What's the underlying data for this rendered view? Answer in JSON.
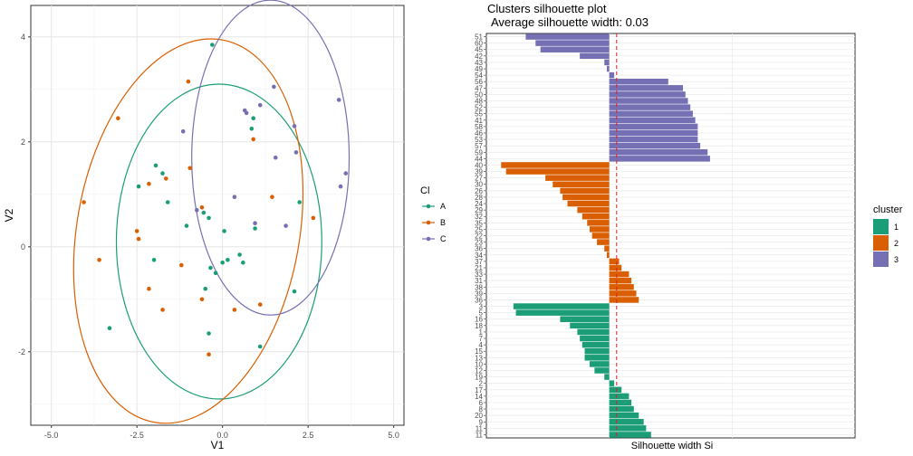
{
  "chart_data": [
    {
      "type": "scatter",
      "xlabel": "V1",
      "ylabel": "V2",
      "xlim": [
        -5.6,
        5.3
      ],
      "ylim": [
        -3.4,
        4.6
      ],
      "xticks": [
        -5.0,
        -2.5,
        0.0,
        2.5,
        5.0
      ],
      "xtick_labels": [
        "-5.0",
        "-2.5",
        "0.0",
        "2.5",
        "5.0"
      ],
      "yticks": [
        -2,
        0,
        2,
        4
      ],
      "ytick_labels": [
        "-2",
        "0",
        "2",
        "4"
      ],
      "grid": true,
      "legend": {
        "title": "Cl",
        "position": "right",
        "entries": [
          "A",
          "B",
          "C"
        ]
      },
      "colors": {
        "A": "#1b9e77",
        "B": "#d95f02",
        "C": "#7570b3"
      },
      "series": [
        {
          "name": "A",
          "points": [
            [
              -0.3,
              3.85
            ],
            [
              0.9,
              2.45
            ],
            [
              0.85,
              2.25
            ],
            [
              -1.95,
              1.55
            ],
            [
              -1.75,
              1.4
            ],
            [
              -2.45,
              1.15
            ],
            [
              -1.6,
              0.85
            ],
            [
              -0.55,
              0.65
            ],
            [
              -0.4,
              0.55
            ],
            [
              0.95,
              0.35
            ],
            [
              -1.05,
              0.4
            ],
            [
              0.05,
              0.3
            ],
            [
              2.25,
              0.85
            ],
            [
              -0.35,
              -0.4
            ],
            [
              -0.2,
              -0.5
            ],
            [
              -0.5,
              -0.8
            ],
            [
              0.15,
              -0.25
            ],
            [
              0.5,
              -0.15
            ],
            [
              0.6,
              -0.3
            ],
            [
              -2.0,
              -0.25
            ],
            [
              0.0,
              -0.3
            ],
            [
              2.1,
              -0.85
            ],
            [
              -3.3,
              -1.55
            ],
            [
              -0.4,
              -1.65
            ],
            [
              1.1,
              -1.9
            ]
          ]
        },
        {
          "name": "B",
          "points": [
            [
              -1.0,
              3.15
            ],
            [
              -3.05,
              2.45
            ],
            [
              0.9,
              2.05
            ],
            [
              -0.95,
              1.5
            ],
            [
              -1.65,
              1.3
            ],
            [
              -2.15,
              1.2
            ],
            [
              -2.5,
              0.3
            ],
            [
              -2.45,
              0.15
            ],
            [
              -4.05,
              0.85
            ],
            [
              -3.6,
              -0.25
            ],
            [
              -0.6,
              0.75
            ],
            [
              1.45,
              0.95
            ],
            [
              2.65,
              0.55
            ],
            [
              -1.2,
              -0.35
            ],
            [
              -2.15,
              -0.8
            ],
            [
              -1.75,
              -1.2
            ],
            [
              -0.6,
              -1.0
            ],
            [
              0.35,
              -1.2
            ],
            [
              1.1,
              -1.1
            ],
            [
              -0.4,
              -2.05
            ]
          ]
        },
        {
          "name": "C",
          "points": [
            [
              1.5,
              3.05
            ],
            [
              1.1,
              2.7
            ],
            [
              0.65,
              2.6
            ],
            [
              0.7,
              2.55
            ],
            [
              3.4,
              2.8
            ],
            [
              -1.15,
              2.2
            ],
            [
              2.1,
              2.3
            ],
            [
              2.15,
              1.8
            ],
            [
              1.55,
              1.7
            ],
            [
              3.6,
              1.4
            ],
            [
              3.45,
              1.15
            ],
            [
              0.35,
              0.95
            ],
            [
              -0.75,
              0.7
            ],
            [
              0.95,
              0.45
            ],
            [
              1.85,
              0.4
            ]
          ]
        }
      ],
      "ellipses": {
        "A": {
          "center": [
            -0.1,
            0.1
          ],
          "semi_axes": [
            3.0,
            3.0
          ],
          "angle_deg": 0
        },
        "B": {
          "center": [
            -1.0,
            0.3
          ],
          "semi_axes": [
            3.25,
            3.7
          ],
          "angle_deg": 10
        },
        "C": {
          "center": [
            1.4,
            1.7
          ],
          "semi_axes": [
            2.3,
            3.0
          ],
          "angle_deg": 0
        }
      }
    },
    {
      "type": "bar",
      "orientation": "horizontal",
      "title": "Clusters silhouette plot",
      "subtitle": "Average silhouette width: 0.03",
      "xlabel": "Silhouette width Si",
      "average_width": 0.03,
      "xlim": [
        -0.5,
        1.0
      ],
      "grid": true,
      "legend": {
        "title": "cluster",
        "position": "right",
        "entries": [
          "1",
          "2",
          "3"
        ]
      },
      "colors": {
        "1": "#1b9e77",
        "2": "#d95f02",
        "3": "#7570b3"
      },
      "bars_top_to_bottom": [
        {
          "label": "51",
          "cluster": "3",
          "value": -0.34
        },
        {
          "label": "60",
          "cluster": "3",
          "value": -0.3
        },
        {
          "label": "45",
          "cluster": "3",
          "value": -0.28
        },
        {
          "label": "42",
          "cluster": "3",
          "value": -0.12
        },
        {
          "label": "43",
          "cluster": "3",
          "value": -0.02
        },
        {
          "label": "49",
          "cluster": "3",
          "value": -0.01
        },
        {
          "label": "54",
          "cluster": "3",
          "value": 0.02
        },
        {
          "label": "56",
          "cluster": "3",
          "value": 0.24
        },
        {
          "label": "47",
          "cluster": "3",
          "value": 0.3
        },
        {
          "label": "50",
          "cluster": "3",
          "value": 0.31
        },
        {
          "label": "48",
          "cluster": "3",
          "value": 0.32
        },
        {
          "label": "52",
          "cluster": "3",
          "value": 0.33
        },
        {
          "label": "55",
          "cluster": "3",
          "value": 0.34
        },
        {
          "label": "41",
          "cluster": "3",
          "value": 0.35
        },
        {
          "label": "58",
          "cluster": "3",
          "value": 0.36
        },
        {
          "label": "46",
          "cluster": "3",
          "value": 0.36
        },
        {
          "label": "53",
          "cluster": "3",
          "value": 0.36
        },
        {
          "label": "57",
          "cluster": "3",
          "value": 0.37
        },
        {
          "label": "59",
          "cluster": "3",
          "value": 0.4
        },
        {
          "label": "44",
          "cluster": "3",
          "value": 0.41
        },
        {
          "label": "40",
          "cluster": "2",
          "value": -0.44
        },
        {
          "label": "39",
          "cluster": "2",
          "value": -0.42
        },
        {
          "label": "27",
          "cluster": "2",
          "value": -0.26
        },
        {
          "label": "30",
          "cluster": "2",
          "value": -0.23
        },
        {
          "label": "26",
          "cluster": "2",
          "value": -0.2
        },
        {
          "label": "28",
          "cluster": "2",
          "value": -0.19
        },
        {
          "label": "24",
          "cluster": "2",
          "value": -0.17
        },
        {
          "label": "29",
          "cluster": "2",
          "value": -0.13
        },
        {
          "label": "32",
          "cluster": "2",
          "value": -0.11
        },
        {
          "label": "35",
          "cluster": "2",
          "value": -0.09
        },
        {
          "label": "25",
          "cluster": "2",
          "value": -0.08
        },
        {
          "label": "22",
          "cluster": "2",
          "value": -0.07
        },
        {
          "label": "23",
          "cluster": "2",
          "value": -0.05
        },
        {
          "label": "36",
          "cluster": "2",
          "value": -0.02
        },
        {
          "label": "34",
          "cluster": "2",
          "value": -0.01
        },
        {
          "label": "37",
          "cluster": "2",
          "value": 0.04
        },
        {
          "label": "21",
          "cluster": "2",
          "value": 0.05
        },
        {
          "label": "33",
          "cluster": "2",
          "value": 0.08
        },
        {
          "label": "31",
          "cluster": "2",
          "value": 0.09
        },
        {
          "label": "38",
          "cluster": "2",
          "value": 0.1
        },
        {
          "label": "39",
          "cluster": "2",
          "value": 0.11
        },
        {
          "label": "36",
          "cluster": "2",
          "value": 0.12
        },
        {
          "label": "3",
          "cluster": "1",
          "value": -0.39
        },
        {
          "label": "5",
          "cluster": "1",
          "value": -0.38
        },
        {
          "label": "16",
          "cluster": "1",
          "value": -0.2
        },
        {
          "label": "18",
          "cluster": "1",
          "value": -0.16
        },
        {
          "label": "1",
          "cluster": "1",
          "value": -0.13
        },
        {
          "label": "7",
          "cluster": "1",
          "value": -0.12
        },
        {
          "label": "4",
          "cluster": "1",
          "value": -0.11
        },
        {
          "label": "15",
          "cluster": "1",
          "value": -0.1
        },
        {
          "label": "13",
          "cluster": "1",
          "value": -0.1
        },
        {
          "label": "10",
          "cluster": "1",
          "value": -0.08
        },
        {
          "label": "12",
          "cluster": "1",
          "value": -0.06
        },
        {
          "label": "19",
          "cluster": "1",
          "value": -0.02
        },
        {
          "label": "2",
          "cluster": "1",
          "value": 0.02
        },
        {
          "label": "17",
          "cluster": "1",
          "value": 0.05
        },
        {
          "label": "14",
          "cluster": "1",
          "value": 0.08
        },
        {
          "label": "6",
          "cluster": "1",
          "value": 0.09
        },
        {
          "label": "8",
          "cluster": "1",
          "value": 0.1
        },
        {
          "label": "20",
          "cluster": "1",
          "value": 0.12
        },
        {
          "label": "9",
          "cluster": "1",
          "value": 0.14
        },
        {
          "label": "11",
          "cluster": "1",
          "value": 0.15
        },
        {
          "label": "11",
          "cluster": "1",
          "value": 0.17
        }
      ]
    }
  ]
}
